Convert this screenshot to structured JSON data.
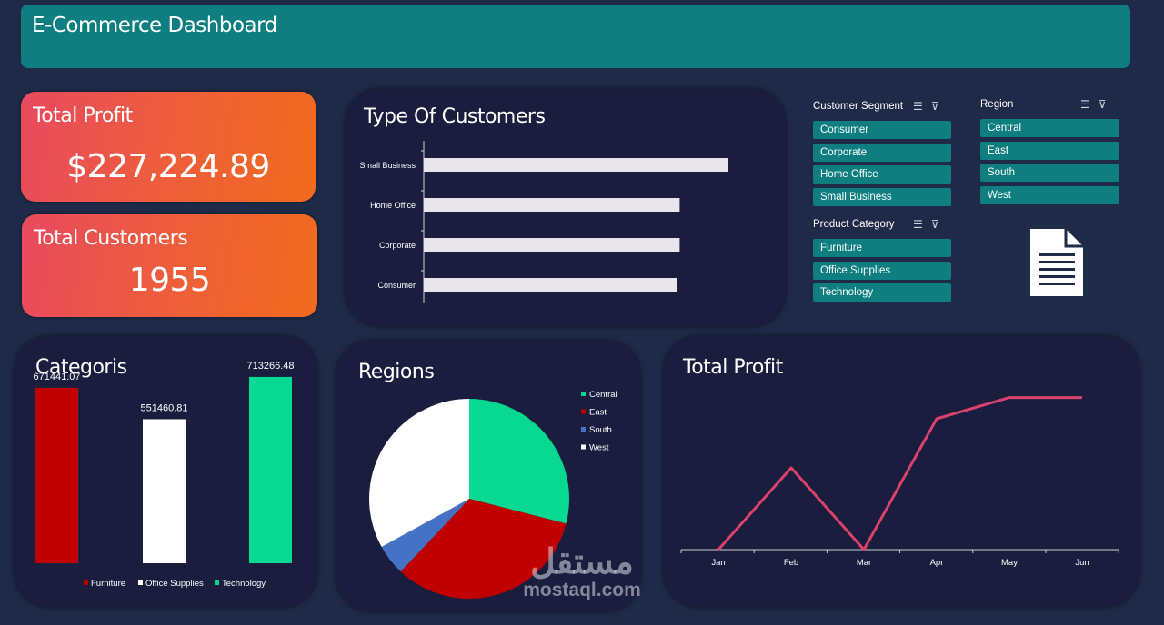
{
  "header": {
    "title": "E-Commerce Dashboard"
  },
  "kpis": {
    "profit": {
      "label": "Total Profit",
      "value": "$227,224.89"
    },
    "customers": {
      "label": "Total Customers",
      "value": "1955"
    }
  },
  "slicers": {
    "segment": {
      "title": "Customer Segment",
      "items": [
        "Consumer",
        "Corporate",
        "Home Office",
        "Small Business"
      ]
    },
    "region": {
      "title": "Region",
      "items": [
        "Central",
        "East",
        "South",
        "West"
      ]
    },
    "category": {
      "title": "Product Category",
      "items": [
        "Furniture",
        "Office Supplies",
        "Technology"
      ]
    },
    "icons": [
      "multi-select-icon",
      "clear-filter-icon"
    ]
  },
  "chart_data": [
    {
      "type": "bar",
      "orientation": "horizontal",
      "title": "Type Of Customers",
      "categories": [
        "Small Business",
        "Home Office",
        "Corporate",
        "Consumer"
      ],
      "values": [
        100,
        84,
        84,
        83
      ],
      "bar_color": "#e8e6ea"
    },
    {
      "type": "bar",
      "title": "Categoris",
      "categories": [
        "Furniture",
        "Office Supplies",
        "Technology"
      ],
      "values": [
        671441.07,
        551460.81,
        713266.48
      ],
      "labels": [
        "671441.07",
        "551460.81",
        "713266.48"
      ],
      "colors": [
        "#c00000",
        "#ffffff",
        "#07d892"
      ],
      "legend": [
        "Furniture",
        "Office Supplies",
        "Technology"
      ],
      "legend_position": "bottom",
      "ylim": [
        0,
        800000
      ]
    },
    {
      "type": "pie",
      "title": "Regions",
      "categories": [
        "Central",
        "East",
        "South",
        "West"
      ],
      "values": [
        29,
        33,
        5,
        33
      ],
      "colors": [
        "#07d892",
        "#c00000",
        "#4472c4",
        "#ffffff"
      ],
      "legend_position": "right"
    },
    {
      "type": "line",
      "title": "Total Profit",
      "x": [
        "Jan",
        "Feb",
        "Mar",
        "Apr",
        "May",
        "Jun"
      ],
      "values": [
        0,
        50,
        0,
        80,
        93,
        93
      ],
      "ylim": [
        0,
        100
      ],
      "color": "#d9426a"
    }
  ],
  "watermark": {
    "ar": "مستقل",
    "en": "mostaql.com"
  }
}
